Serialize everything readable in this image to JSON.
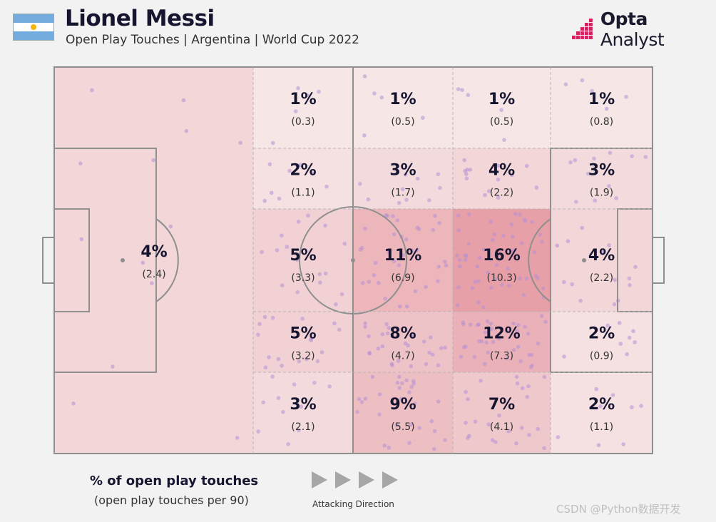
{
  "header": {
    "title": "Lionel Messi",
    "subtitle": "Open Play Touches | Argentina | World Cup 2022",
    "brand_bold": "Opta",
    "brand_rest": " Analyst"
  },
  "legend": {
    "title": "% of open play touches",
    "subtitle": "(open play touches per 90)",
    "direction_label": "Attacking Direction"
  },
  "watermark": "CSDN @Python数据开发",
  "colors": {
    "flag_blue": "#74acdf",
    "flag_sun": "#f6b40e",
    "brand_accent": "#d62060",
    "dot": "#b58fd6",
    "heat_low": "#f7ecec",
    "heat_high": "#e7a0a8"
  },
  "chart_data": {
    "type": "heatmap",
    "title": "Lionel Messi",
    "subtitle": "Open Play Touches | Argentina | World Cup 2022",
    "zones": [
      {
        "zone": "own-half",
        "pct": "4%",
        "per90": "(2.4)",
        "value": 4
      },
      {
        "zone": "col1-row1",
        "pct": "1%",
        "per90": "(0.3)",
        "value": 1
      },
      {
        "zone": "col1-row2",
        "pct": "2%",
        "per90": "(1.1)",
        "value": 2
      },
      {
        "zone": "col1-row3",
        "pct": "5%",
        "per90": "(3.3)",
        "value": 5
      },
      {
        "zone": "col1-row4",
        "pct": "5%",
        "per90": "(3.2)",
        "value": 5
      },
      {
        "zone": "col1-row5",
        "pct": "3%",
        "per90": "(2.1)",
        "value": 3
      },
      {
        "zone": "col2-row1",
        "pct": "1%",
        "per90": "(0.5)",
        "value": 1
      },
      {
        "zone": "col2-row2",
        "pct": "3%",
        "per90": "(1.7)",
        "value": 3
      },
      {
        "zone": "col2-row3",
        "pct": "11%",
        "per90": "(6.9)",
        "value": 11
      },
      {
        "zone": "col2-row4",
        "pct": "8%",
        "per90": "(4.7)",
        "value": 8
      },
      {
        "zone": "col2-row5",
        "pct": "9%",
        "per90": "(5.5)",
        "value": 9
      },
      {
        "zone": "col3-row1",
        "pct": "1%",
        "per90": "(0.5)",
        "value": 1
      },
      {
        "zone": "col3-row2",
        "pct": "4%",
        "per90": "(2.2)",
        "value": 4
      },
      {
        "zone": "col3-row3",
        "pct": "16%",
        "per90": "(10.3)",
        "value": 16
      },
      {
        "zone": "col3-row4",
        "pct": "12%",
        "per90": "(7.3)",
        "value": 12
      },
      {
        "zone": "col3-row5",
        "pct": "7%",
        "per90": "(4.1)",
        "value": 7
      },
      {
        "zone": "col4-row1",
        "pct": "1%",
        "per90": "(0.8)",
        "value": 1
      },
      {
        "zone": "col4-row2",
        "pct": "3%",
        "per90": "(1.9)",
        "value": 3
      },
      {
        "zone": "col4-row3",
        "pct": "4%",
        "per90": "(2.2)",
        "value": 4
      },
      {
        "zone": "col4-row4",
        "pct": "2%",
        "per90": "(0.9)",
        "value": 2
      },
      {
        "zone": "col4-row5",
        "pct": "2%",
        "per90": "(1.1)",
        "value": 2
      }
    ]
  }
}
